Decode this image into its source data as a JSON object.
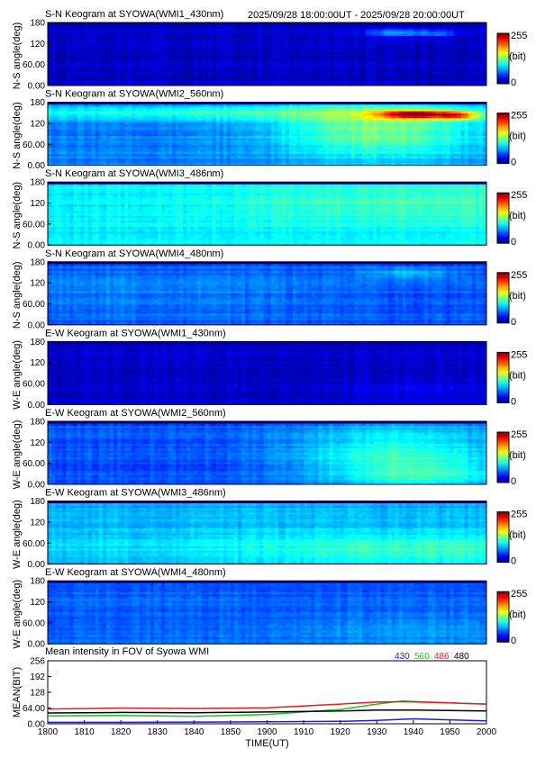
{
  "header": {
    "time_range": "2025/09/28 18:00:00UT - 2025/09/28 20:00:00UT"
  },
  "colorbar": {
    "max_label": "255",
    "unit_label": "(bit)",
    "min_label": "0"
  },
  "colors": {
    "k430": "#1f1fd0",
    "k560": "#20c020",
    "k486": "#e02020",
    "k480": "#000000"
  },
  "chart_data": [
    {
      "type": "heatmap",
      "title": "S-N Keogram at SYOWA(WMI1_430nm)",
      "ylabel": "N-S angle(deg)",
      "yticks": [
        "180",
        "120",
        "60.00",
        "0.00"
      ],
      "ylim": [
        0,
        180
      ],
      "value_range": [
        0,
        255
      ],
      "base_level": 0.06,
      "features": [
        {
          "t": 1935,
          "a": 150,
          "st": 6,
          "sa": 8,
          "amp": 0.22
        },
        {
          "t": 1947,
          "a": 148,
          "st": 4,
          "sa": 7,
          "amp": 0.14
        }
      ]
    },
    {
      "type": "heatmap",
      "title": "S-N Keogram at SYOWA(WMI2_560nm)",
      "ylabel": "N-S angle(deg)",
      "yticks": [
        "180",
        "120",
        "60.00",
        "0.00"
      ],
      "ylim": [
        0,
        180
      ],
      "value_range": [
        0,
        255
      ],
      "base_level": 0.25,
      "features": [
        {
          "t": 1940,
          "a": 145,
          "st": 7,
          "sa": 8,
          "amp": 0.55
        },
        {
          "t": 1952,
          "a": 142,
          "st": 4,
          "sa": 8,
          "amp": 0.35
        },
        {
          "t": 1930,
          "a": 100,
          "st": 20,
          "sa": 60,
          "amp": 0.25
        },
        {
          "t": 1845,
          "a": 150,
          "st": 60,
          "sa": 14,
          "amp": 0.15
        }
      ]
    },
    {
      "type": "heatmap",
      "title": "S-N Keogram at SYOWA(WMI3_486nm)",
      "ylabel": "N-S angle(deg)",
      "yticks": [
        "180",
        "120",
        "60.00",
        "0.00"
      ],
      "ylim": [
        0,
        180
      ],
      "value_range": [
        0,
        255
      ],
      "base_level": 0.36,
      "features": [
        {
          "t": 1940,
          "a": 120,
          "st": 40,
          "sa": 50,
          "amp": 0.08
        }
      ]
    },
    {
      "type": "heatmap",
      "title": "S-N Keogram at SYOWA(WMI4_480nm)",
      "ylabel": "N-S angle(deg)",
      "yticks": [
        "180",
        "120",
        "60.00",
        "0.00"
      ],
      "ylim": [
        0,
        180
      ],
      "value_range": [
        0,
        255
      ],
      "base_level": 0.2,
      "features": [
        {
          "t": 1938,
          "a": 148,
          "st": 8,
          "sa": 10,
          "amp": 0.12
        },
        {
          "t": 1820,
          "a": 90,
          "st": 40,
          "sa": 60,
          "amp": 0.05
        }
      ]
    },
    {
      "type": "heatmap",
      "title": "E-W Keogram at SYOWA(WMI1_430nm)",
      "ylabel": "W-E angle(deg)",
      "yticks": [
        "180",
        "120",
        "60.00",
        "0.00"
      ],
      "ylim": [
        0,
        180
      ],
      "value_range": [
        0,
        255
      ],
      "base_level": 0.07,
      "features": [
        {
          "t": 1940,
          "a": 40,
          "st": 15,
          "sa": 20,
          "amp": 0.04
        }
      ]
    },
    {
      "type": "heatmap",
      "title": "E-W Keogram at SYOWA(WMI2_560nm)",
      "ylabel": "W-E angle(deg)",
      "yticks": [
        "180",
        "120",
        "60.00",
        "0.00"
      ],
      "ylim": [
        0,
        180
      ],
      "value_range": [
        0,
        255
      ],
      "base_level": 0.2,
      "features": [
        {
          "t": 1935,
          "a": 80,
          "st": 20,
          "sa": 70,
          "amp": 0.22
        },
        {
          "t": 1945,
          "a": 30,
          "st": 15,
          "sa": 25,
          "amp": 0.1
        }
      ]
    },
    {
      "type": "heatmap",
      "title": "E-W Keogram at SYOWA(WMI3_486nm)",
      "ylabel": "W-E angle(deg)",
      "yticks": [
        "180",
        "120",
        "60.00",
        "0.00"
      ],
      "ylim": [
        0,
        180
      ],
      "value_range": [
        0,
        255
      ],
      "base_level": 0.3,
      "features": [
        {
          "t": 1945,
          "a": 40,
          "st": 35,
          "sa": 35,
          "amp": 0.12
        },
        {
          "t": 1830,
          "a": 45,
          "st": 50,
          "sa": 40,
          "amp": 0.04
        }
      ]
    },
    {
      "type": "heatmap",
      "title": "E-W Keogram at SYOWA(WMI4_480nm)",
      "ylabel": "W-E angle(deg)",
      "yticks": [
        "180",
        "120",
        "60.00",
        "0.00"
      ],
      "ylim": [
        0,
        180
      ],
      "value_range": [
        0,
        255
      ],
      "base_level": 0.22,
      "features": [
        {
          "t": 1940,
          "a": 40,
          "st": 30,
          "sa": 30,
          "amp": 0.06
        }
      ]
    },
    {
      "type": "line",
      "title": "Mean intensity in FOV of Syowa WMI",
      "ylabel": "MEAN(BIT)",
      "xlabel": "TIME(UT)",
      "yticks": [
        "256",
        "192",
        "128",
        "64.00",
        "0.00"
      ],
      "ylim": [
        0,
        256
      ],
      "xlim": [
        1800,
        2000
      ],
      "xticks": [
        "1800",
        "1810",
        "1820",
        "1830",
        "1840",
        "1850",
        "1900",
        "1910",
        "1920",
        "1930",
        "1940",
        "1950",
        "2000"
      ],
      "series": [
        {
          "name": "430",
          "color": "#1f1fd0",
          "x": [
            1800,
            1820,
            1840,
            1900,
            1920,
            1930,
            1940,
            1950,
            2000
          ],
          "y": [
            6,
            6,
            7,
            8,
            10,
            14,
            20,
            16,
            12
          ]
        },
        {
          "name": "560",
          "color": "#20c020",
          "x": [
            1800,
            1820,
            1840,
            1900,
            1920,
            1930,
            1937,
            1950,
            2000
          ],
          "y": [
            32,
            34,
            30,
            38,
            58,
            80,
            92,
            85,
            80
          ]
        },
        {
          "name": "486",
          "color": "#e02020",
          "x": [
            1800,
            1820,
            1840,
            1900,
            1920,
            1930,
            1937,
            1950,
            2000
          ],
          "y": [
            60,
            64,
            62,
            65,
            80,
            88,
            90,
            85,
            80
          ]
        },
        {
          "name": "480",
          "color": "#000000",
          "x": [
            1800,
            1820,
            1840,
            1900,
            1920,
            1930,
            1940,
            1950,
            2000
          ],
          "y": [
            44,
            46,
            45,
            48,
            52,
            56,
            56,
            54,
            52
          ]
        }
      ]
    }
  ]
}
